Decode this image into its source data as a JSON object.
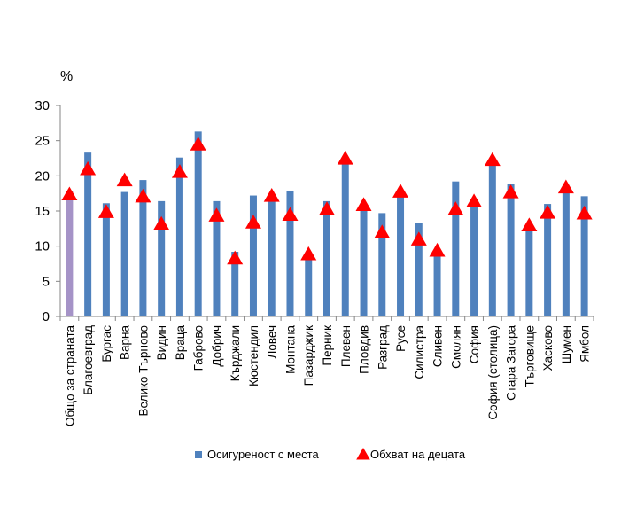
{
  "chart_data": {
    "type": "bar",
    "title": "",
    "xlabel": "",
    "ylabel": "%",
    "ylim": [
      0,
      30
    ],
    "yticks": [
      0,
      5,
      10,
      15,
      20,
      25,
      30
    ],
    "grid": false,
    "legend_position": "bottom",
    "categories": [
      "Общо за страната",
      "Благоевград",
      "Бургас",
      "Варна",
      "Велико Търново",
      "Видин",
      "Враца",
      "Габрово",
      "Добрич",
      "Кърджали",
      "Кюстендил",
      "Ловеч",
      "Монтана",
      "Пазарджик",
      "Перник",
      "Плевен",
      "Пловдив",
      "Разград",
      "Русе",
      "Силистра",
      "Сливен",
      "Смолян",
      "София",
      "София (столица)",
      "Стара Загора",
      "Търговище",
      "Хасково",
      "Шумен",
      "Ямбол"
    ],
    "series": [
      {
        "name": "Осигуреност с места",
        "kind": "bar",
        "color": "#4F81BD",
        "highlight_color": "#A593C7",
        "highlight_index": 0,
        "values": [
          17.9,
          23.3,
          16.1,
          17.7,
          19.4,
          16.4,
          22.6,
          26.3,
          16.4,
          9.2,
          17.2,
          16.9,
          17.9,
          8.3,
          16.4,
          22.1,
          15.6,
          14.7,
          17.2,
          13.3,
          9.1,
          19.2,
          15.8,
          21.9,
          18.9,
          12.7,
          16.0,
          17.6,
          17.1
        ]
      },
      {
        "name": "Обхват на децата",
        "kind": "marker",
        "marker": "triangle",
        "color": "#FF0000",
        "values": [
          17.3,
          20.9,
          14.8,
          19.3,
          17.0,
          13.1,
          20.5,
          24.4,
          14.3,
          8.2,
          13.3,
          17.1,
          14.4,
          8.8,
          15.2,
          22.4,
          15.8,
          11.9,
          17.7,
          10.9,
          9.3,
          15.2,
          16.3,
          22.2,
          17.6,
          12.9,
          14.7,
          18.3,
          14.6
        ]
      }
    ]
  }
}
